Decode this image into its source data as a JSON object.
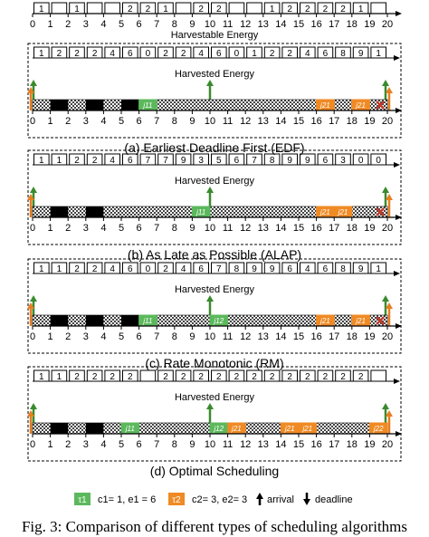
{
  "top": {
    "harvestable": [
      "1",
      "",
      "1",
      "",
      "",
      "2",
      "2",
      "1",
      "",
      "2",
      "2",
      "",
      "",
      "1",
      "2",
      "2",
      "2",
      "2",
      "1",
      "",
      ""
    ],
    "label": "Harvestable Energy"
  },
  "axis_ticks": [
    "0",
    "1",
    "2",
    "3",
    "4",
    "5",
    "6",
    "7",
    "8",
    "9",
    "10",
    "11",
    "12",
    "13",
    "14",
    "15",
    "16",
    "17",
    "18",
    "19",
    "20"
  ],
  "harvested_label": "Harvested Energy",
  "panels": [
    {
      "caption": "(a) Earliest Deadline First (EDF)",
      "energy": [
        "1",
        "2",
        "2",
        "2",
        "4",
        "6",
        "0",
        "2",
        "2",
        "4",
        "6",
        "0",
        "1",
        "2",
        "2",
        "4",
        "6",
        "8",
        "9",
        "1",
        ""
      ],
      "tasks": [
        {
          "task": "tau1",
          "start": 6,
          "end": 7,
          "label": "j11"
        },
        {
          "task": "tau2",
          "start": 16,
          "end": 17,
          "label": "j21"
        },
        {
          "task": "tau2",
          "start": 18,
          "end": 19,
          "label": "j21"
        }
      ],
      "dark": [
        1,
        3,
        5
      ],
      "miss": 19.6
    },
    {
      "caption": "(b) As Late as Possible (ALAP)",
      "energy": [
        "1",
        "1",
        "2",
        "2",
        "4",
        "6",
        "7",
        "7",
        "9",
        "3",
        "5",
        "6",
        "7",
        "8",
        "9",
        "9",
        "6",
        "3",
        "0",
        "0",
        ""
      ],
      "tasks": [
        {
          "task": "tau1",
          "start": 9,
          "end": 10,
          "label": "j11"
        },
        {
          "task": "tau2",
          "start": 16,
          "end": 17,
          "label": "j21"
        },
        {
          "task": "tau2",
          "start": 17,
          "end": 18,
          "label": "j21"
        }
      ],
      "dark": [
        1,
        3
      ],
      "miss": 19.6
    },
    {
      "caption": "(c) Rate Monotonic (RM)",
      "energy": [
        "1",
        "1",
        "2",
        "2",
        "4",
        "6",
        "0",
        "2",
        "4",
        "6",
        "7",
        "8",
        "9",
        "9",
        "6",
        "4",
        "6",
        "8",
        "9",
        "1",
        ""
      ],
      "tasks": [
        {
          "task": "tau1",
          "start": 6,
          "end": 7,
          "label": "j11"
        },
        {
          "task": "tau1",
          "start": 10,
          "end": 11,
          "label": "j12"
        },
        {
          "task": "tau2",
          "start": 16,
          "end": 17,
          "label": "j21"
        },
        {
          "task": "tau2",
          "start": 18,
          "end": 19,
          "label": "j21"
        }
      ],
      "dark": [
        1,
        3,
        5
      ],
      "miss": 19.6
    },
    {
      "caption": "(d) Optimal Scheduling",
      "energy": [
        "1",
        "1",
        "2",
        "2",
        "2",
        "2",
        "",
        "2",
        "2",
        "2",
        "2",
        "2",
        "2",
        "2",
        "2",
        "2",
        "2",
        "2",
        "2",
        "",
        ""
      ],
      "tasks": [
        {
          "task": "tau1",
          "start": 5,
          "end": 6,
          "label": "j11"
        },
        {
          "task": "tau1",
          "start": 10,
          "end": 11,
          "label": "j12"
        },
        {
          "task": "tau2",
          "start": 11,
          "end": 12,
          "label": "j21"
        },
        {
          "task": "tau2",
          "start": 14,
          "end": 15,
          "label": "j21"
        },
        {
          "task": "tau2",
          "start": 15,
          "end": 16,
          "label": "j21"
        },
        {
          "task": "tau2",
          "start": 19,
          "end": 20,
          "label": "j22"
        }
      ],
      "dark": [
        1,
        3
      ],
      "miss": null
    }
  ],
  "legend": {
    "tau1_label": "τ1",
    "tau1_text": "c1= 1, e1 = 6",
    "tau2_label": "τ2",
    "tau2_text": "c2= 3, e2= 3",
    "arrival_text": "arrival",
    "deadline_text": "deadline"
  },
  "figure_caption": "Fig. 3: Comparison of different types of scheduling algorithms",
  "colors": {
    "tau1": "#5cb85c",
    "tau2": "#f08a24",
    "arrival_tau1": "#3a8a2e",
    "arrival_tau2": "#e67e22",
    "miss": "#c0392b",
    "dark": "#000000"
  }
}
